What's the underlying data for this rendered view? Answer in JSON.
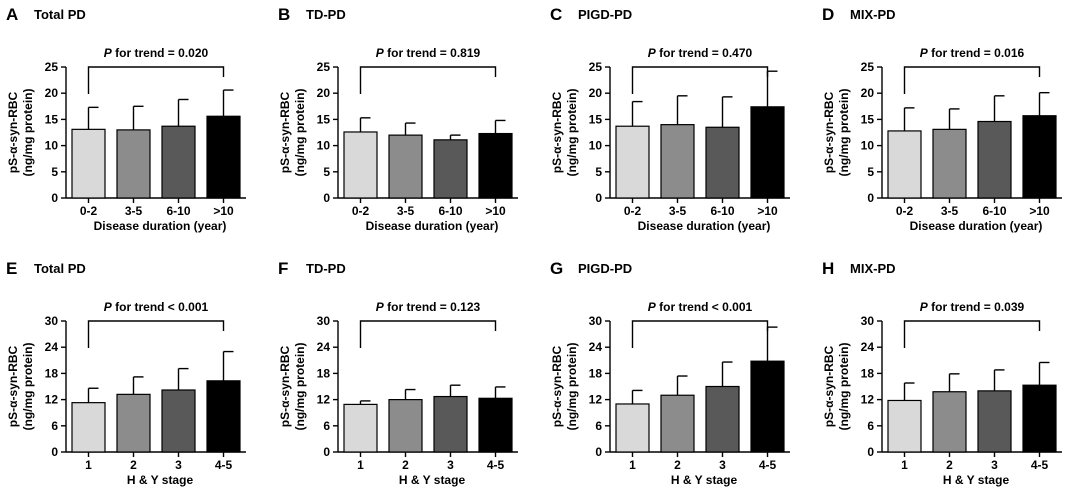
{
  "chart_data": [
    {
      "letter": "A",
      "title": "Total PD",
      "type": "bar",
      "trend_prefix": "P",
      "trend_text": " for trend = 0.020",
      "categories": [
        "0-2",
        "3-5",
        "6-10",
        ">10"
      ],
      "values": [
        13.1,
        13.0,
        13.7,
        15.6
      ],
      "errors": [
        4.2,
        4.5,
        5.1,
        5.0
      ],
      "colors": [
        "#d9d9d9",
        "#8c8c8c",
        "#595959",
        "#000000"
      ],
      "ylim": [
        0,
        25
      ],
      "yticks": [
        0,
        5,
        10,
        15,
        20,
        25
      ],
      "ylabel_line1": "pS-α-syn-RBC",
      "ylabel_line2": "(ng/mg protein)",
      "xlabel": "Disease duration (year)"
    },
    {
      "letter": "B",
      "title": "TD-PD",
      "type": "bar",
      "trend_prefix": "P",
      "trend_text": " for trend = 0.819",
      "categories": [
        "0-2",
        "3-5",
        "6-10",
        ">10"
      ],
      "values": [
        12.6,
        12.0,
        11.1,
        12.3
      ],
      "errors": [
        2.7,
        2.3,
        0.9,
        2.5
      ],
      "colors": [
        "#d9d9d9",
        "#8c8c8c",
        "#595959",
        "#000000"
      ],
      "ylim": [
        0,
        25
      ],
      "yticks": [
        0,
        5,
        10,
        15,
        20,
        25
      ],
      "ylabel_line1": "pS-α-syn-RBC",
      "ylabel_line2": "(ng/mg protein)",
      "xlabel": "Disease duration (year)"
    },
    {
      "letter": "C",
      "title": "PIGD-PD",
      "type": "bar",
      "trend_prefix": "P",
      "trend_text": " for trend = 0.470",
      "categories": [
        "0-2",
        "3-5",
        "6-10",
        ">10"
      ],
      "values": [
        13.7,
        14.0,
        13.5,
        17.4
      ],
      "errors": [
        4.7,
        5.5,
        5.8,
        6.8
      ],
      "colors": [
        "#d9d9d9",
        "#8c8c8c",
        "#595959",
        "#000000"
      ],
      "ylim": [
        0,
        25
      ],
      "yticks": [
        0,
        5,
        10,
        15,
        20,
        25
      ],
      "ylabel_line1": "pS-α-syn-RBC",
      "ylabel_line2": "(ng/mg protein)",
      "xlabel": "Disease duration (year)"
    },
    {
      "letter": "D",
      "title": "MIX-PD",
      "type": "bar",
      "trend_prefix": "P",
      "trend_text": " for trend = 0.016",
      "categories": [
        "0-2",
        "3-5",
        "6-10",
        ">10"
      ],
      "values": [
        12.8,
        13.1,
        14.6,
        15.7
      ],
      "errors": [
        4.4,
        3.9,
        4.9,
        4.4
      ],
      "colors": [
        "#d9d9d9",
        "#8c8c8c",
        "#595959",
        "#000000"
      ],
      "ylim": [
        0,
        25
      ],
      "yticks": [
        0,
        5,
        10,
        15,
        20,
        25
      ],
      "ylabel_line1": "pS-α-syn-RBC",
      "ylabel_line2": "(ng/mg protein)",
      "xlabel": "Disease duration (year)"
    },
    {
      "letter": "E",
      "title": "Total PD",
      "type": "bar",
      "trend_prefix": "P",
      "trend_text": " for trend < 0.001",
      "categories": [
        "1",
        "2",
        "3",
        "4-5"
      ],
      "values": [
        11.3,
        13.2,
        14.2,
        16.3
      ],
      "errors": [
        3.3,
        4.0,
        4.9,
        6.7
      ],
      "colors": [
        "#d9d9d9",
        "#8c8c8c",
        "#595959",
        "#000000"
      ],
      "ylim": [
        0,
        30
      ],
      "yticks": [
        0,
        6,
        12,
        18,
        24,
        30
      ],
      "ylabel_line1": "pS-α-syn-RBC",
      "ylabel_line2": "(ng/mg protein)",
      "xlabel": "H & Y stage"
    },
    {
      "letter": "F",
      "title": "TD-PD",
      "type": "bar",
      "trend_prefix": "P",
      "trend_text": " for trend = 0.123",
      "categories": [
        "1",
        "2",
        "3",
        "4-5"
      ],
      "values": [
        10.9,
        12.0,
        12.7,
        12.3
      ],
      "errors": [
        0.8,
        2.3,
        2.6,
        2.6
      ],
      "colors": [
        "#d9d9d9",
        "#8c8c8c",
        "#595959",
        "#000000"
      ],
      "ylim": [
        0,
        30
      ],
      "yticks": [
        0,
        6,
        12,
        18,
        24,
        30
      ],
      "ylabel_line1": "pS-α-syn-RBC",
      "ylabel_line2": "(ng/mg protein)",
      "xlabel": "H & Y stage"
    },
    {
      "letter": "G",
      "title": "PIGD-PD",
      "type": "bar",
      "trend_prefix": "P",
      "trend_text": " for trend < 0.001",
      "categories": [
        "1",
        "2",
        "3",
        "4-5"
      ],
      "values": [
        11.0,
        13.0,
        15.0,
        20.8
      ],
      "errors": [
        3.1,
        4.4,
        5.6,
        7.8
      ],
      "colors": [
        "#d9d9d9",
        "#8c8c8c",
        "#595959",
        "#000000"
      ],
      "ylim": [
        0,
        30
      ],
      "yticks": [
        0,
        6,
        12,
        18,
        24,
        30
      ],
      "ylabel_line1": "pS-α-syn-RBC",
      "ylabel_line2": "(ng/mg protein)",
      "xlabel": "H & Y stage"
    },
    {
      "letter": "H",
      "title": "MIX-PD",
      "type": "bar",
      "trend_prefix": "P",
      "trend_text": " for trend = 0.039",
      "categories": [
        "1",
        "2",
        "3",
        "4-5"
      ],
      "values": [
        11.8,
        13.8,
        14.0,
        15.3
      ],
      "errors": [
        4.0,
        4.1,
        4.8,
        5.2
      ],
      "colors": [
        "#d9d9d9",
        "#8c8c8c",
        "#595959",
        "#000000"
      ],
      "ylim": [
        0,
        30
      ],
      "yticks": [
        0,
        6,
        12,
        18,
        24,
        30
      ],
      "ylabel_line1": "pS-α-syn-RBC",
      "ylabel_line2": "(ng/mg protein)",
      "xlabel": "H & Y stage"
    }
  ]
}
